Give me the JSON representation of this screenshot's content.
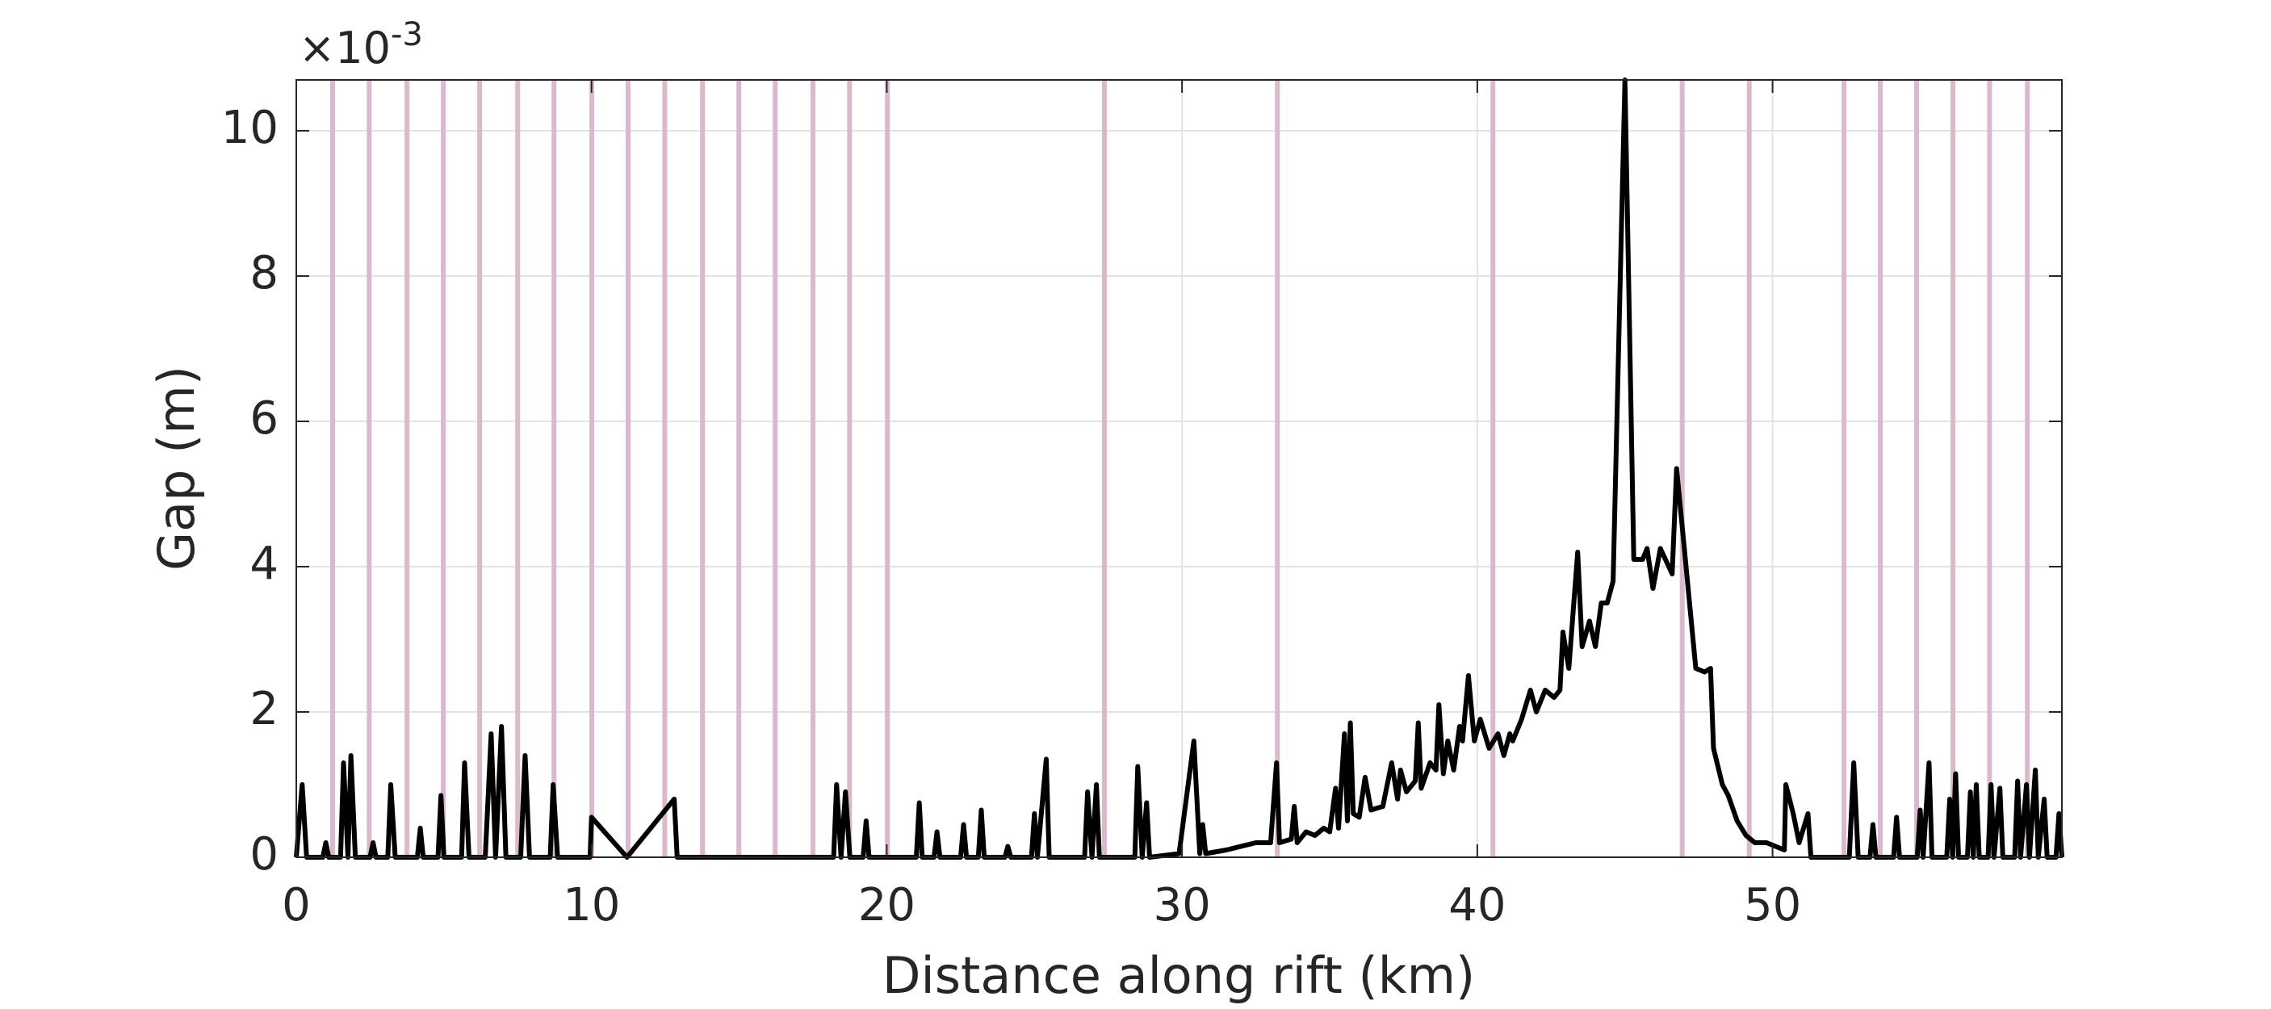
{
  "chart_data": {
    "type": "line",
    "xlabel": "Distance along rift (km)",
    "ylabel": "Gap (m)",
    "y_exponent_base": "×10",
    "y_exponent": "-3",
    "xlim": [
      0,
      59.8
    ],
    "ylim": [
      0,
      10.7
    ],
    "xticks": [
      0,
      10,
      20,
      30,
      40,
      50
    ],
    "yticks": [
      0,
      2,
      4,
      6,
      8,
      10
    ],
    "grid": true,
    "color": "#000000",
    "vline_color": "#dcb8cc",
    "vlines": [
      1.23,
      2.47,
      3.75,
      4.98,
      6.21,
      7.5,
      8.73,
      10.01,
      11.24,
      12.48,
      13.76,
      14.99,
      16.22,
      17.5,
      18.74,
      20.02,
      27.37,
      33.23,
      40.53,
      46.94,
      49.21,
      52.42,
      53.65,
      54.88,
      56.11,
      57.35,
      58.63
    ],
    "x": [
      0,
      0.2,
      0.35,
      0.9,
      1.0,
      1.1,
      1.5,
      1.6,
      1.75,
      1.85,
      2.0,
      2.5,
      2.6,
      2.7,
      3.1,
      3.2,
      3.35,
      4.1,
      4.2,
      4.3,
      4.8,
      4.9,
      5.0,
      5.6,
      5.7,
      5.85,
      6.4,
      6.6,
      6.75,
      6.95,
      7.1,
      7.6,
      7.75,
      7.9,
      8.6,
      8.7,
      8.85,
      9.95,
      10.0,
      11.2,
      12.8,
      12.9,
      18.2,
      18.3,
      18.45,
      18.6,
      18.75,
      19.2,
      19.3,
      19.4,
      21.0,
      21.1,
      21.2,
      21.6,
      21.7,
      21.8,
      22.5,
      22.6,
      22.7,
      23.1,
      23.2,
      23.3,
      24.0,
      24.1,
      24.2,
      24.9,
      25.0,
      25.1,
      25.4,
      25.5,
      26.7,
      26.8,
      26.95,
      27.1,
      27.2,
      28.4,
      28.5,
      28.65,
      28.8,
      28.9,
      29.9,
      30.4,
      30.6,
      30.7,
      30.8,
      31.5,
      32.5,
      33.0,
      33.2,
      33.3,
      33.7,
      33.8,
      33.9,
      34.2,
      34.5,
      34.8,
      35.0,
      35.2,
      35.3,
      35.5,
      35.6,
      35.7,
      35.8,
      36.0,
      36.2,
      36.4,
      36.8,
      37.1,
      37.3,
      37.4,
      37.6,
      37.9,
      38.0,
      38.1,
      38.4,
      38.6,
      38.7,
      38.85,
      39.0,
      39.2,
      39.4,
      39.5,
      39.7,
      39.9,
      40.1,
      40.4,
      40.7,
      40.9,
      41.1,
      41.2,
      41.5,
      41.8,
      42.0,
      42.3,
      42.6,
      42.8,
      42.9,
      43.1,
      43.4,
      43.55,
      43.8,
      44.0,
      44.2,
      44.4,
      44.6,
      45.0,
      45.3,
      45.6,
      45.75,
      45.95,
      46.2,
      46.6,
      46.75,
      47.0,
      47.4,
      47.7,
      47.9,
      48.0,
      48.3,
      48.5,
      48.8,
      49.1,
      49.4,
      49.8,
      50.4,
      50.45,
      50.7,
      50.9,
      51.2,
      51.3,
      52.6,
      52.75,
      52.9,
      53.3,
      53.4,
      53.5,
      54.1,
      54.2,
      54.3,
      54.9,
      55.0,
      55.1,
      55.3,
      55.4,
      55.9,
      56.0,
      56.1,
      56.2,
      56.3,
      56.6,
      56.7,
      56.8,
      56.9,
      57.0,
      57.3,
      57.4,
      57.5,
      57.7,
      57.8,
      58.2,
      58.3,
      58.4,
      58.6,
      58.7,
      58.9,
      59.0,
      59.2,
      59.3,
      59.6,
      59.7,
      59.8
    ],
    "values": [
      0,
      1.0,
      0,
      0,
      0.2,
      0,
      0,
      1.3,
      0,
      1.4,
      0,
      0,
      0.2,
      0,
      0,
      1.0,
      0,
      0,
      0.4,
      0,
      0,
      0.85,
      0,
      0,
      1.3,
      0,
      0,
      1.7,
      0,
      1.8,
      0,
      0,
      1.4,
      0,
      0,
      1.0,
      0,
      0,
      0.55,
      0,
      0.8,
      0,
      0,
      1.0,
      0,
      0.9,
      0,
      0,
      0.5,
      0,
      0,
      0.75,
      0,
      0,
      0.35,
      0,
      0,
      0.45,
      0,
      0,
      0.65,
      0,
      0,
      0.15,
      0,
      0,
      0.6,
      0,
      1.35,
      0,
      0,
      0.9,
      0,
      1.0,
      0,
      0,
      1.25,
      0,
      0.75,
      0,
      0.05,
      1.6,
      0.05,
      0.45,
      0.05,
      0.1,
      0.2,
      0.2,
      1.3,
      0.2,
      0.25,
      0.7,
      0.2,
      0.35,
      0.3,
      0.4,
      0.35,
      0.95,
      0.4,
      1.7,
      0.5,
      1.85,
      0.6,
      0.55,
      1.1,
      0.65,
      0.7,
      1.3,
      0.8,
      1.2,
      0.9,
      1.05,
      1.85,
      0.95,
      1.3,
      1.2,
      2.1,
      1.15,
      1.6,
      1.2,
      1.8,
      1.6,
      2.5,
      1.6,
      1.9,
      1.5,
      1.7,
      1.4,
      1.7,
      1.6,
      1.9,
      2.3,
      2.0,
      2.3,
      2.2,
      2.3,
      3.1,
      2.6,
      4.2,
      2.9,
      3.25,
      2.9,
      3.5,
      3.5,
      3.8,
      10.7,
      4.1,
      4.1,
      4.25,
      3.7,
      4.25,
      3.9,
      5.35,
      4.3,
      2.6,
      2.55,
      2.6,
      1.5,
      1.0,
      0.85,
      0.5,
      0.3,
      0.2,
      0.2,
      0.1,
      1.0,
      0.6,
      0.2,
      0.6,
      0,
      0,
      1.3,
      0,
      0,
      0.45,
      0,
      0,
      0.55,
      0,
      0,
      0.65,
      0,
      1.3,
      0,
      0,
      0.8,
      0,
      1.15,
      0,
      0,
      0.9,
      0,
      1.0,
      0,
      0,
      1.0,
      0,
      0.95,
      0,
      0,
      1.05,
      0,
      1.0,
      0,
      1.2,
      0,
      0.8,
      0,
      0,
      0.6,
      0
    ]
  }
}
